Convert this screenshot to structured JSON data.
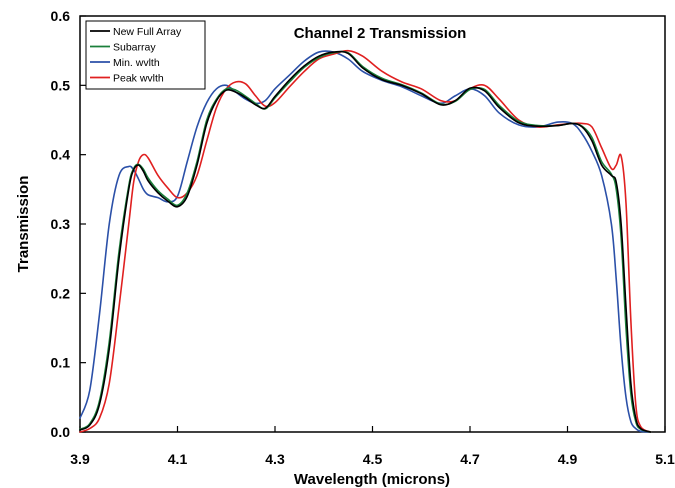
{
  "chart_data": {
    "type": "line",
    "title": "Channel 2 Transmission",
    "xlabel": "Wavelength (microns)",
    "ylabel": "Transmission",
    "xlim": [
      3.9,
      5.1
    ],
    "ylim": [
      0.0,
      0.6
    ],
    "xticks": [
      "3.9",
      "4.1",
      "4.3",
      "4.5",
      "4.7",
      "4.9",
      "5.1"
    ],
    "xtick_values": [
      3.9,
      4.1,
      4.3,
      4.5,
      4.7,
      4.9,
      5.1
    ],
    "yticks": [
      "0.0",
      "0.1",
      "0.2",
      "0.3",
      "0.4",
      "0.5",
      "0.6"
    ],
    "ytick_values": [
      0.0,
      0.1,
      0.2,
      0.3,
      0.4,
      0.5,
      0.6
    ],
    "grid": false,
    "legend_position": "top-left",
    "series": [
      {
        "name": "New Full Array",
        "color": "#000000",
        "x": [
          3.9,
          3.92,
          3.94,
          3.96,
          3.98,
          4.0,
          4.01,
          4.02,
          4.03,
          4.04,
          4.06,
          4.08,
          4.1,
          4.12,
          4.14,
          4.16,
          4.18,
          4.2,
          4.22,
          4.24,
          4.26,
          4.28,
          4.3,
          4.33,
          4.36,
          4.39,
          4.42,
          4.45,
          4.48,
          4.52,
          4.56,
          4.6,
          4.64,
          4.67,
          4.7,
          4.73,
          4.76,
          4.8,
          4.84,
          4.88,
          4.91,
          4.93,
          4.95,
          4.97,
          4.99,
          5.0,
          5.01,
          5.02,
          5.03,
          5.04,
          5.05,
          5.07
        ],
        "y": [
          0.003,
          0.01,
          0.04,
          0.12,
          0.25,
          0.35,
          0.378,
          0.385,
          0.376,
          0.362,
          0.345,
          0.333,
          0.325,
          0.34,
          0.385,
          0.445,
          0.478,
          0.493,
          0.49,
          0.482,
          0.472,
          0.467,
          0.484,
          0.508,
          0.528,
          0.542,
          0.548,
          0.546,
          0.525,
          0.508,
          0.5,
          0.488,
          0.472,
          0.478,
          0.496,
          0.492,
          0.468,
          0.446,
          0.441,
          0.442,
          0.445,
          0.44,
          0.42,
          0.385,
          0.37,
          0.36,
          0.3,
          0.18,
          0.07,
          0.02,
          0.005,
          0.0
        ]
      },
      {
        "name": "Subarray",
        "color": "#1a7f3a",
        "x": [
          3.9,
          3.92,
          3.94,
          3.96,
          3.98,
          4.0,
          4.01,
          4.02,
          4.03,
          4.04,
          4.06,
          4.08,
          4.1,
          4.12,
          4.14,
          4.16,
          4.18,
          4.2,
          4.22,
          4.24,
          4.26,
          4.28,
          4.3,
          4.33,
          4.36,
          4.39,
          4.42,
          4.45,
          4.48,
          4.52,
          4.56,
          4.6,
          4.64,
          4.67,
          4.7,
          4.73,
          4.76,
          4.8,
          4.84,
          4.88,
          4.91,
          4.93,
          4.95,
          4.97,
          4.99,
          5.0,
          5.01,
          5.02,
          5.03,
          5.04,
          5.05,
          5.07
        ],
        "y": [
          0.004,
          0.012,
          0.045,
          0.13,
          0.26,
          0.355,
          0.38,
          0.386,
          0.379,
          0.366,
          0.348,
          0.336,
          0.327,
          0.345,
          0.39,
          0.45,
          0.48,
          0.495,
          0.493,
          0.484,
          0.474,
          0.466,
          0.482,
          0.505,
          0.526,
          0.54,
          0.547,
          0.547,
          0.527,
          0.51,
          0.501,
          0.489,
          0.473,
          0.477,
          0.494,
          0.494,
          0.471,
          0.448,
          0.442,
          0.442,
          0.445,
          0.441,
          0.425,
          0.39,
          0.372,
          0.35,
          0.28,
          0.15,
          0.055,
          0.015,
          0.004,
          0.0
        ]
      },
      {
        "name": "Min. wvlth",
        "color": "#2b50a8",
        "x": [
          3.9,
          3.92,
          3.94,
          3.96,
          3.98,
          4.0,
          4.01,
          4.02,
          4.03,
          4.04,
          4.06,
          4.08,
          4.1,
          4.12,
          4.14,
          4.16,
          4.18,
          4.2,
          4.22,
          4.24,
          4.26,
          4.28,
          4.3,
          4.33,
          4.36,
          4.39,
          4.42,
          4.45,
          4.48,
          4.52,
          4.56,
          4.6,
          4.64,
          4.67,
          4.7,
          4.73,
          4.76,
          4.8,
          4.84,
          4.88,
          4.91,
          4.93,
          4.95,
          4.97,
          4.99,
          5.0,
          5.01,
          5.02,
          5.03,
          5.04,
          5.05,
          5.07
        ],
        "y": [
          0.02,
          0.06,
          0.17,
          0.3,
          0.37,
          0.383,
          0.378,
          0.365,
          0.35,
          0.342,
          0.338,
          0.332,
          0.34,
          0.39,
          0.44,
          0.475,
          0.495,
          0.5,
          0.49,
          0.48,
          0.474,
          0.478,
          0.495,
          0.515,
          0.535,
          0.548,
          0.548,
          0.538,
          0.52,
          0.507,
          0.498,
          0.485,
          0.474,
          0.485,
          0.495,
          0.485,
          0.46,
          0.443,
          0.44,
          0.447,
          0.445,
          0.43,
          0.405,
          0.37,
          0.3,
          0.22,
          0.12,
          0.05,
          0.015,
          0.005,
          0.001,
          0.0
        ]
      },
      {
        "name": "Peak wvlth",
        "color": "#e02020",
        "x": [
          3.9,
          3.92,
          3.94,
          3.96,
          3.98,
          4.0,
          4.01,
          4.02,
          4.03,
          4.04,
          4.06,
          4.08,
          4.1,
          4.12,
          4.14,
          4.16,
          4.18,
          4.2,
          4.22,
          4.24,
          4.26,
          4.28,
          4.3,
          4.33,
          4.36,
          4.39,
          4.42,
          4.45,
          4.48,
          4.52,
          4.56,
          4.6,
          4.64,
          4.67,
          4.7,
          4.73,
          4.76,
          4.8,
          4.84,
          4.88,
          4.91,
          4.93,
          4.95,
          4.97,
          4.99,
          5.0,
          5.01,
          5.02,
          5.03,
          5.04,
          5.05,
          5.07
        ],
        "y": [
          0.0,
          0.005,
          0.02,
          0.07,
          0.18,
          0.3,
          0.36,
          0.39,
          0.4,
          0.395,
          0.37,
          0.352,
          0.338,
          0.345,
          0.37,
          0.42,
          0.468,
          0.495,
          0.505,
          0.502,
          0.485,
          0.47,
          0.475,
          0.498,
          0.52,
          0.538,
          0.545,
          0.55,
          0.542,
          0.52,
          0.505,
          0.495,
          0.478,
          0.478,
          0.495,
          0.5,
          0.48,
          0.45,
          0.44,
          0.443,
          0.445,
          0.445,
          0.44,
          0.41,
          0.38,
          0.385,
          0.398,
          0.33,
          0.16,
          0.04,
          0.008,
          0.0
        ]
      }
    ]
  }
}
